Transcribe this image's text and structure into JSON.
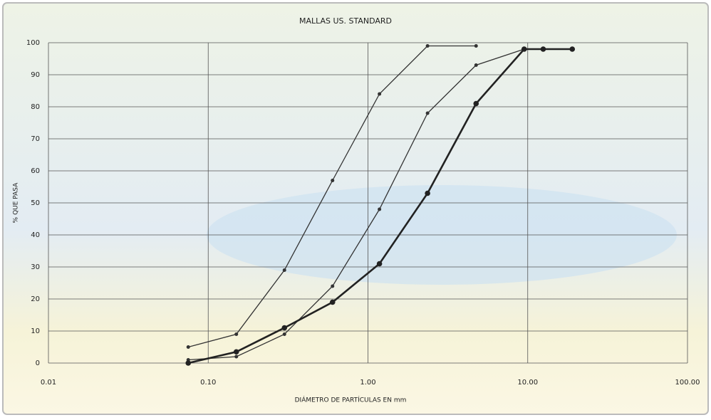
{
  "chart_data": {
    "type": "line",
    "title": "MALLAS US. STANDARD",
    "x_label": "DIÁMETRO DE PARTÍCULAS EN mm",
    "y_label": "% QUE PASA",
    "x_scale": "log",
    "grid": true,
    "xlim": [
      0.01,
      100
    ],
    "xticks": [
      0.01,
      {
        "value": 0.1,
        "label": "0.10"
      },
      {
        "value": 1,
        "label": "1.00"
      },
      {
        "value": 10,
        "label": "10.00"
      },
      {
        "value": 100,
        "label": "100.00"
      }
    ],
    "ylim": [
      0,
      100
    ],
    "yticks": [
      0,
      10,
      20,
      30,
      40,
      50,
      60,
      70,
      80,
      90,
      100
    ],
    "series": [
      {
        "color": "#333333",
        "line_width": 1.3,
        "x": [
          0.075,
          0.15,
          0.3,
          0.6,
          1.18,
          2.36,
          4.75
        ],
        "values": [
          5,
          9,
          29,
          57,
          84,
          99,
          99
        ]
      },
      {
        "color": "#333333",
        "line_width": 1.3,
        "x": [
          0.075,
          0.15,
          0.3,
          0.6,
          1.18,
          2.36,
          4.75,
          9.5
        ],
        "values": [
          1,
          2,
          9,
          24,
          48,
          78,
          93,
          98
        ]
      },
      {
        "color": "#222222",
        "line_width": 2.6,
        "x": [
          0.075,
          0.15,
          0.3,
          0.6,
          1.18,
          2.36,
          4.75,
          9.5,
          12.5,
          19
        ],
        "values": [
          0,
          3.5,
          11,
          19,
          31,
          53,
          81,
          98,
          98,
          98
        ]
      }
    ]
  }
}
